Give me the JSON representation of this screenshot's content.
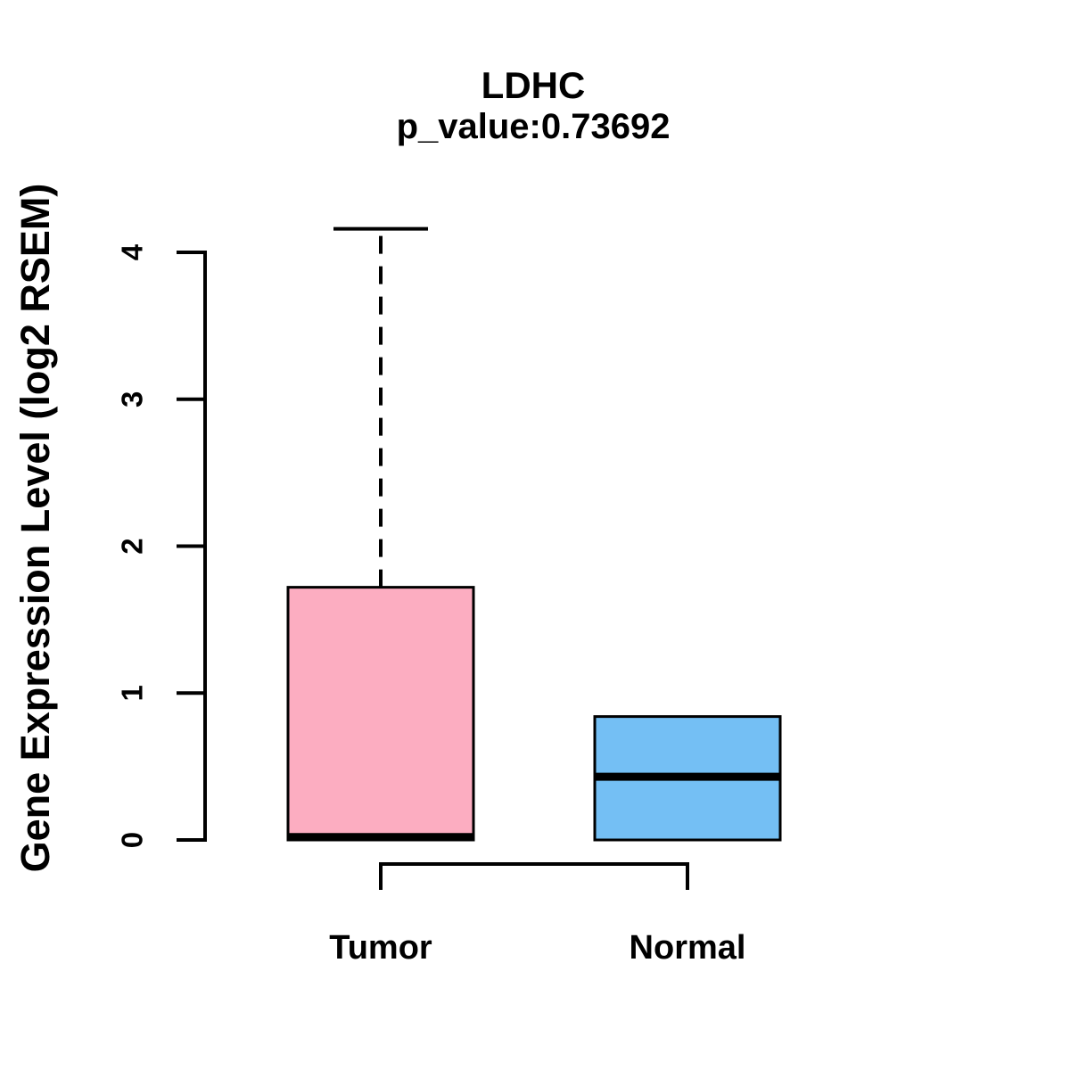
{
  "chart_data": {
    "type": "boxplot",
    "title": "LDHC",
    "subtitle": "p_value:0.73692",
    "ylabel": "Gene Expression Level (log2 RSEM)",
    "xlabel": "",
    "categories": [
      "Tumor",
      "Normal"
    ],
    "y_ticks": [
      0,
      1,
      2,
      3,
      4
    ],
    "ylim": [
      0,
      4.2
    ],
    "grid": false,
    "legend": "none",
    "series": [
      {
        "name": "Tumor",
        "fill_color": "#FCADC1",
        "whisker_low": 0,
        "q1": 0,
        "median": 0.02,
        "q3": 1.72,
        "whisker_high": 4.16,
        "upper_whisker_style": "dashed"
      },
      {
        "name": "Normal",
        "fill_color": "#74BFF4",
        "whisker_low": 0,
        "q1": 0,
        "median": 0.43,
        "q3": 0.84,
        "whisker_high": 0.84,
        "upper_whisker_style": "none"
      }
    ],
    "comparison_bracket": {
      "from": "Tumor",
      "to": "Normal"
    }
  },
  "colors": {
    "axis": "#000000",
    "text": "#000000",
    "tumor_fill": "#FCADC1",
    "normal_fill": "#74BFF4",
    "background": "#ffffff"
  }
}
